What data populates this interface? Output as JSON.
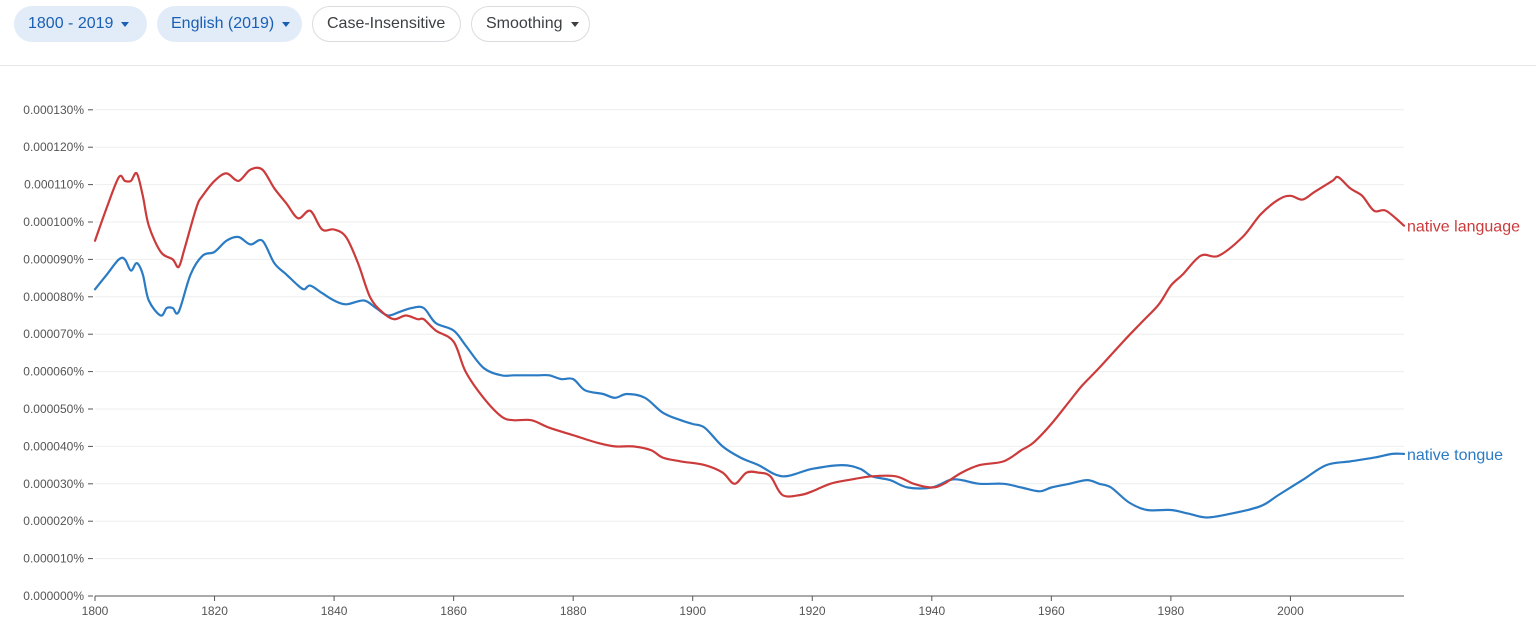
{
  "toolbar": {
    "range_label": "1800 - 2019",
    "corpus_label": "English (2019)",
    "case_label": "Case-Insensitive",
    "smoothing_label": "Smoothing"
  },
  "chart_data": {
    "type": "line",
    "xlim": [
      1800,
      2019
    ],
    "ylim": [
      0,
      0.000135
    ],
    "x_ticks": [
      1800,
      1820,
      1840,
      1860,
      1880,
      1900,
      1920,
      1940,
      1960,
      1980,
      2000
    ],
    "y_ticks": [
      "0.000000%",
      "0.000010%",
      "0.000020%",
      "0.000030%",
      "0.000040%",
      "0.000050%",
      "0.000060%",
      "0.000070%",
      "0.000080%",
      "0.000090%",
      "0.000100%",
      "0.000110%",
      "0.000120%",
      "0.000130%"
    ],
    "grid": true,
    "legend": "labels at line ends (right)",
    "colors": {
      "native language": "#cc3b3b",
      "native tongue": "#2b7bc4",
      "grid": "#eeeeee",
      "axis": "#555555"
    },
    "series": [
      {
        "name": "native language",
        "points": [
          [
            1800,
            9.5e-05
          ],
          [
            1802,
            0.000104
          ],
          [
            1804,
            0.000112
          ],
          [
            1805,
            0.000111
          ],
          [
            1806,
            0.000111
          ],
          [
            1807,
            0.000113
          ],
          [
            1808,
            0.000107
          ],
          [
            1809,
            9.9e-05
          ],
          [
            1811,
            9.2e-05
          ],
          [
            1813,
            9e-05
          ],
          [
            1814,
            8.8e-05
          ],
          [
            1815,
            9.3e-05
          ],
          [
            1817,
            0.000104
          ],
          [
            1818,
            0.000107
          ],
          [
            1820,
            0.000111
          ],
          [
            1822,
            0.000113
          ],
          [
            1824,
            0.000111
          ],
          [
            1826,
            0.000114
          ],
          [
            1828,
            0.000114
          ],
          [
            1830,
            0.000109
          ],
          [
            1832,
            0.000105
          ],
          [
            1834,
            0.000101
          ],
          [
            1836,
            0.000103
          ],
          [
            1838,
            9.8e-05
          ],
          [
            1840,
            9.8e-05
          ],
          [
            1842,
            9.6e-05
          ],
          [
            1844,
            8.9e-05
          ],
          [
            1846,
            8e-05
          ],
          [
            1848,
            7.6e-05
          ],
          [
            1850,
            7.4e-05
          ],
          [
            1852,
            7.5e-05
          ],
          [
            1854,
            7.4e-05
          ],
          [
            1855,
            7.4e-05
          ],
          [
            1857,
            7.1e-05
          ],
          [
            1860,
            6.8e-05
          ],
          [
            1862,
            6e-05
          ],
          [
            1865,
            5.3e-05
          ],
          [
            1868,
            4.8e-05
          ],
          [
            1870,
            4.7e-05
          ],
          [
            1873,
            4.7e-05
          ],
          [
            1876,
            4.5e-05
          ],
          [
            1880,
            4.3e-05
          ],
          [
            1884,
            4.1e-05
          ],
          [
            1887,
            4e-05
          ],
          [
            1890,
            4e-05
          ],
          [
            1893,
            3.9e-05
          ],
          [
            1895,
            3.7e-05
          ],
          [
            1898,
            3.6e-05
          ],
          [
            1902,
            3.5e-05
          ],
          [
            1905,
            3.3e-05
          ],
          [
            1907,
            3e-05
          ],
          [
            1909,
            3.3e-05
          ],
          [
            1911,
            3.3e-05
          ],
          [
            1913,
            3.2e-05
          ],
          [
            1915,
            2.7e-05
          ],
          [
            1918,
            2.7e-05
          ],
          [
            1920,
            2.8e-05
          ],
          [
            1923,
            3e-05
          ],
          [
            1926,
            3.1e-05
          ],
          [
            1930,
            3.2e-05
          ],
          [
            1934,
            3.2e-05
          ],
          [
            1937,
            3e-05
          ],
          [
            1940,
            2.9e-05
          ],
          [
            1942,
            3e-05
          ],
          [
            1945,
            3.3e-05
          ],
          [
            1948,
            3.5e-05
          ],
          [
            1952,
            3.6e-05
          ],
          [
            1955,
            3.9e-05
          ],
          [
            1957,
            4.1e-05
          ],
          [
            1960,
            4.6e-05
          ],
          [
            1963,
            5.2e-05
          ],
          [
            1965,
            5.6e-05
          ],
          [
            1968,
            6.1e-05
          ],
          [
            1972,
            6.8e-05
          ],
          [
            1975,
            7.3e-05
          ],
          [
            1978,
            7.8e-05
          ],
          [
            1980,
            8.3e-05
          ],
          [
            1982,
            8.6e-05
          ],
          [
            1985,
            9.1e-05
          ],
          [
            1988,
            9.1e-05
          ],
          [
            1992,
            9.6e-05
          ],
          [
            1995,
            0.000102
          ],
          [
            1998,
            0.000106
          ],
          [
            2000,
            0.000107
          ],
          [
            2002,
            0.000106
          ],
          [
            2004,
            0.000108
          ],
          [
            2007,
            0.000111
          ],
          [
            2008,
            0.000112
          ],
          [
            2010,
            0.000109
          ],
          [
            2012,
            0.000107
          ],
          [
            2014,
            0.000103
          ],
          [
            2016,
            0.000103
          ],
          [
            2019,
            9.9e-05
          ]
        ]
      },
      {
        "name": "native tongue",
        "points": [
          [
            1800,
            8.2e-05
          ],
          [
            1802,
            8.6e-05
          ],
          [
            1804,
            9e-05
          ],
          [
            1805,
            9e-05
          ],
          [
            1806,
            8.7e-05
          ],
          [
            1807,
            8.9e-05
          ],
          [
            1808,
            8.6e-05
          ],
          [
            1809,
            7.9e-05
          ],
          [
            1811,
            7.5e-05
          ],
          [
            1812,
            7.7e-05
          ],
          [
            1813,
            7.7e-05
          ],
          [
            1814,
            7.6e-05
          ],
          [
            1816,
            8.6e-05
          ],
          [
            1818,
            9.1e-05
          ],
          [
            1820,
            9.2e-05
          ],
          [
            1822,
            9.5e-05
          ],
          [
            1824,
            9.6e-05
          ],
          [
            1826,
            9.4e-05
          ],
          [
            1828,
            9.5e-05
          ],
          [
            1830,
            8.9e-05
          ],
          [
            1832,
            8.6e-05
          ],
          [
            1834,
            8.3e-05
          ],
          [
            1835,
            8.2e-05
          ],
          [
            1836,
            8.3e-05
          ],
          [
            1838,
            8.1e-05
          ],
          [
            1840,
            7.9e-05
          ],
          [
            1842,
            7.8e-05
          ],
          [
            1845,
            7.9e-05
          ],
          [
            1847,
            7.7e-05
          ],
          [
            1849,
            7.5e-05
          ],
          [
            1851,
            7.6e-05
          ],
          [
            1853,
            7.7e-05
          ],
          [
            1855,
            7.7e-05
          ],
          [
            1857,
            7.3e-05
          ],
          [
            1860,
            7.1e-05
          ],
          [
            1862,
            6.7e-05
          ],
          [
            1865,
            6.1e-05
          ],
          [
            1868,
            5.9e-05
          ],
          [
            1870,
            5.9e-05
          ],
          [
            1872,
            5.9e-05
          ],
          [
            1874,
            5.9e-05
          ],
          [
            1876,
            5.9e-05
          ],
          [
            1878,
            5.8e-05
          ],
          [
            1880,
            5.8e-05
          ],
          [
            1882,
            5.5e-05
          ],
          [
            1885,
            5.4e-05
          ],
          [
            1887,
            5.3e-05
          ],
          [
            1889,
            5.4e-05
          ],
          [
            1892,
            5.3e-05
          ],
          [
            1895,
            4.9e-05
          ],
          [
            1898,
            4.7e-05
          ],
          [
            1900,
            4.6e-05
          ],
          [
            1902,
            4.5e-05
          ],
          [
            1905,
            4e-05
          ],
          [
            1908,
            3.7e-05
          ],
          [
            1911,
            3.5e-05
          ],
          [
            1915,
            3.2e-05
          ],
          [
            1920,
            3.4e-05
          ],
          [
            1925,
            3.5e-05
          ],
          [
            1928,
            3.4e-05
          ],
          [
            1930,
            3.2e-05
          ],
          [
            1933,
            3.1e-05
          ],
          [
            1936,
            2.9e-05
          ],
          [
            1940,
            2.9e-05
          ],
          [
            1943,
            3.1e-05
          ],
          [
            1945,
            3.1e-05
          ],
          [
            1948,
            3e-05
          ],
          [
            1952,
            3e-05
          ],
          [
            1955,
            2.9e-05
          ],
          [
            1958,
            2.8e-05
          ],
          [
            1960,
            2.9e-05
          ],
          [
            1963,
            3e-05
          ],
          [
            1966,
            3.1e-05
          ],
          [
            1968,
            3e-05
          ],
          [
            1970,
            2.9e-05
          ],
          [
            1973,
            2.5e-05
          ],
          [
            1976,
            2.3e-05
          ],
          [
            1980,
            2.3e-05
          ],
          [
            1983,
            2.2e-05
          ],
          [
            1986,
            2.1e-05
          ],
          [
            1990,
            2.2e-05
          ],
          [
            1995,
            2.4e-05
          ],
          [
            1998,
            2.7e-05
          ],
          [
            2002,
            3.1e-05
          ],
          [
            2006,
            3.5e-05
          ],
          [
            2010,
            3.6e-05
          ],
          [
            2014,
            3.7e-05
          ],
          [
            2017,
            3.8e-05
          ],
          [
            2019,
            3.8e-05
          ]
        ]
      }
    ]
  }
}
